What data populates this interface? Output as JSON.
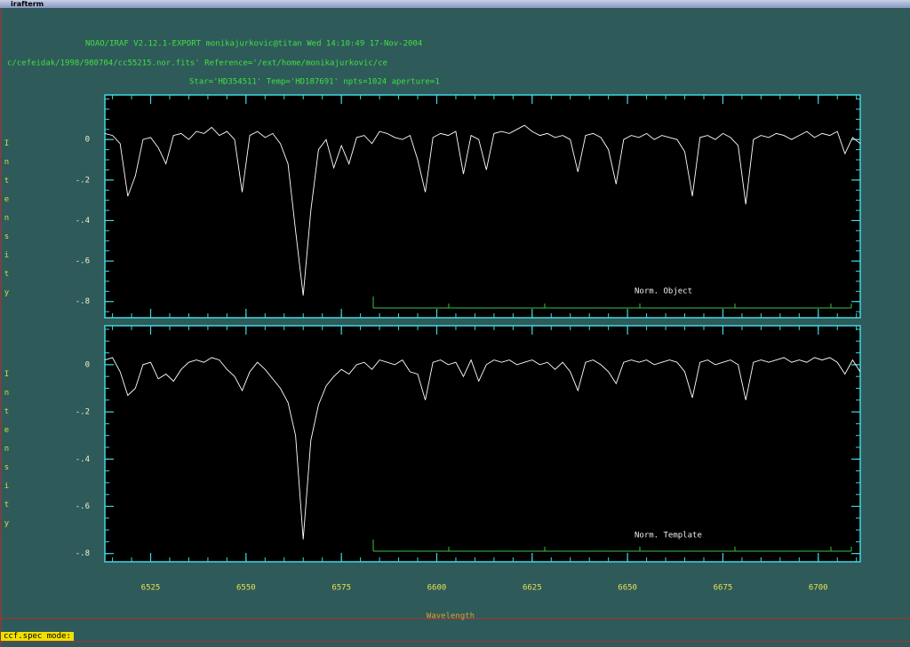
{
  "window": {
    "title": "irafterm"
  },
  "header": [
    "NOAO/IRAF V2.12.1-EXPORT monikajurkovic@titan Wed 14:10:49 17-Nov-2004",
    "c/cefeidak/1998/980704/cc55215.nor.fits' Reference='/ext/home/monikajurkovic/ce",
    "Star='HD354511' Temp='HD187691' npts=1024 aperture=1"
  ],
  "chart_data": [
    {
      "type": "line",
      "label": "Norm. Object",
      "ylabel": "Intensity",
      "color": "#ffffff",
      "xtick_labels": false,
      "xlim": [
        6513,
        6711
      ],
      "xticks": [
        6525,
        6550,
        6575,
        6600,
        6625,
        6650,
        6675,
        6700
      ],
      "ylim": [
        -0.88,
        0.22
      ],
      "yticks": [
        0,
        {
          "value": -0.2,
          "label": "-.2"
        },
        {
          "value": -0.4,
          "label": "-.4"
        },
        {
          "value": -0.6,
          "label": "-.6"
        },
        {
          "value": -0.8,
          "label": "-.8"
        }
      ],
      "x": [
        6513,
        6515,
        6517,
        6519,
        6521,
        6523,
        6525,
        6527,
        6529,
        6531,
        6533,
        6535,
        6537,
        6539,
        6541,
        6543,
        6545,
        6547,
        6549,
        6551,
        6553,
        6555,
        6557,
        6559,
        6561,
        6563,
        6565,
        6567,
        6569,
        6571,
        6573,
        6575,
        6577,
        6579,
        6581,
        6583,
        6585,
        6587,
        6589,
        6591,
        6593,
        6595,
        6597,
        6599,
        6601,
        6603,
        6605,
        6607,
        6609,
        6611,
        6613,
        6615,
        6617,
        6619,
        6621,
        6623,
        6625,
        6627,
        6629,
        6631,
        6633,
        6635,
        6637,
        6639,
        6641,
        6643,
        6645,
        6647,
        6649,
        6651,
        6653,
        6655,
        6657,
        6659,
        6661,
        6663,
        6665,
        6667,
        6669,
        6671,
        6673,
        6675,
        6677,
        6679,
        6681,
        6683,
        6685,
        6687,
        6689,
        6691,
        6693,
        6695,
        6697,
        6699,
        6701,
        6703,
        6705,
        6707,
        6709,
        6711
      ],
      "values": [
        0.03,
        0.02,
        -0.02,
        -0.28,
        -0.18,
        0.0,
        0.01,
        -0.04,
        -0.12,
        0.02,
        0.03,
        0.0,
        0.04,
        0.03,
        0.06,
        0.02,
        0.04,
        0.0,
        -0.26,
        0.02,
        0.04,
        0.01,
        0.03,
        -0.02,
        -0.12,
        -0.45,
        -0.77,
        -0.35,
        -0.05,
        0.0,
        -0.14,
        -0.03,
        -0.12,
        0.01,
        0.02,
        -0.02,
        0.04,
        0.03,
        0.01,
        0.0,
        0.02,
        -0.1,
        -0.26,
        0.01,
        0.03,
        0.02,
        0.04,
        -0.17,
        0.02,
        0.0,
        -0.15,
        0.03,
        0.04,
        0.03,
        0.05,
        0.07,
        0.04,
        0.02,
        0.03,
        0.01,
        0.02,
        0.0,
        -0.16,
        0.02,
        0.03,
        0.01,
        -0.05,
        -0.22,
        0.0,
        0.02,
        0.01,
        0.03,
        0.0,
        0.02,
        0.01,
        0.0,
        -0.06,
        -0.28,
        0.01,
        0.02,
        0.0,
        0.03,
        0.01,
        -0.03,
        -0.32,
        0.0,
        0.02,
        0.01,
        0.03,
        0.02,
        0.0,
        0.02,
        0.04,
        0.01,
        0.03,
        0.02,
        0.04,
        -0.07,
        0.01,
        -0.02
      ]
    },
    {
      "type": "line",
      "label": "Norm. Template",
      "ylabel": "Intensity",
      "xlabel": "Wavelength",
      "color": "#ffffff",
      "xtick_labels": true,
      "xlim": [
        6513,
        6711
      ],
      "xticks": [
        6525,
        6550,
        6575,
        6600,
        6625,
        6650,
        6675,
        6700
      ],
      "ylim": [
        -0.835,
        0.165
      ],
      "yticks": [
        0,
        {
          "value": -0.2,
          "label": "-.2"
        },
        {
          "value": -0.4,
          "label": "-.4"
        },
        {
          "value": -0.6,
          "label": "-.6"
        },
        {
          "value": -0.8,
          "label": "-.8"
        }
      ],
      "x": [
        6513,
        6515,
        6517,
        6519,
        6521,
        6523,
        6525,
        6527,
        6529,
        6531,
        6533,
        6535,
        6537,
        6539,
        6541,
        6543,
        6545,
        6547,
        6549,
        6551,
        6553,
        6555,
        6557,
        6559,
        6561,
        6563,
        6565,
        6567,
        6569,
        6571,
        6573,
        6575,
        6577,
        6579,
        6581,
        6583,
        6585,
        6587,
        6589,
        6591,
        6593,
        6595,
        6597,
        6599,
        6601,
        6603,
        6605,
        6607,
        6609,
        6611,
        6613,
        6615,
        6617,
        6619,
        6621,
        6623,
        6625,
        6627,
        6629,
        6631,
        6633,
        6635,
        6637,
        6639,
        6641,
        6643,
        6645,
        6647,
        6649,
        6651,
        6653,
        6655,
        6657,
        6659,
        6661,
        6663,
        6665,
        6667,
        6669,
        6671,
        6673,
        6675,
        6677,
        6679,
        6681,
        6683,
        6685,
        6687,
        6689,
        6691,
        6693,
        6695,
        6697,
        6699,
        6701,
        6703,
        6705,
        6707,
        6709,
        6711
      ],
      "values": [
        0.02,
        0.03,
        -0.03,
        -0.13,
        -0.1,
        0.0,
        0.01,
        -0.06,
        -0.04,
        -0.07,
        -0.02,
        0.01,
        0.02,
        0.01,
        0.03,
        0.02,
        -0.02,
        -0.05,
        -0.11,
        -0.03,
        0.01,
        -0.02,
        -0.06,
        -0.1,
        -0.16,
        -0.3,
        -0.74,
        -0.32,
        -0.17,
        -0.09,
        -0.05,
        -0.02,
        -0.04,
        0.0,
        0.01,
        -0.02,
        0.02,
        0.01,
        0.0,
        0.02,
        -0.03,
        -0.04,
        -0.15,
        0.01,
        0.02,
        0.0,
        0.01,
        -0.05,
        0.02,
        -0.07,
        0.0,
        0.02,
        0.01,
        0.02,
        0.0,
        0.01,
        0.02,
        0.0,
        0.01,
        -0.02,
        0.01,
        -0.03,
        -0.11,
        0.01,
        0.02,
        0.0,
        -0.03,
        -0.08,
        0.01,
        0.02,
        0.01,
        0.02,
        0.0,
        0.01,
        0.02,
        0.01,
        -0.03,
        -0.14,
        0.01,
        0.02,
        0.0,
        0.01,
        0.02,
        0.0,
        -0.15,
        0.01,
        0.02,
        0.01,
        0.02,
        0.03,
        0.01,
        0.02,
        0.01,
        0.03,
        0.02,
        0.03,
        0.01,
        -0.04,
        0.02,
        -0.03
      ]
    }
  ],
  "prompt": "ccf.spec mode:"
}
